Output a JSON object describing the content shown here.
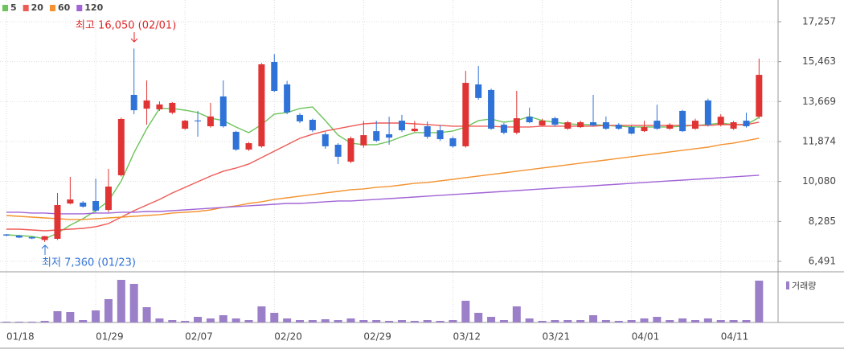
{
  "chart_data": {
    "type": "candlestick",
    "categories": [
      "01/18",
      null,
      null,
      null,
      null,
      null,
      null,
      "01/29",
      null,
      null,
      null,
      null,
      null,
      null,
      "02/07",
      null,
      null,
      null,
      null,
      null,
      null,
      "02/20",
      null,
      null,
      null,
      null,
      null,
      null,
      "02/29",
      null,
      null,
      null,
      null,
      null,
      null,
      "03/12",
      null,
      null,
      null,
      null,
      null,
      null,
      "03/21",
      null,
      null,
      null,
      null,
      null,
      null,
      "04/01",
      null,
      null,
      null,
      null,
      null,
      null,
      "04/11",
      null,
      null,
      null
    ],
    "open": [
      7700,
      7650,
      7580,
      7450,
      7503,
      9090,
      9130,
      9200,
      8800,
      10357,
      13970,
      13350,
      13320,
      13170,
      12450,
      12820,
      12560,
      13900,
      12310,
      11513,
      11657,
      15450,
      14440,
      13070,
      12850,
      12200,
      11730,
      10970,
      11700,
      12340,
      12200,
      12810,
      12340,
      12560,
      12380,
      12020,
      11660,
      14440,
      14190,
      12630,
      12270,
      12990,
      12600,
      12920,
      12450,
      12520,
      12740,
      12740,
      12630,
      12520,
      12340,
      12810,
      12450,
      13250,
      12450,
      13720,
      12630,
      12450,
      12810,
      12990
    ],
    "high": [
      7720,
      7680,
      7600,
      7640,
      9562,
      10285,
      9200,
      10212,
      10646,
      12950,
      16050,
      14620,
      13680,
      13650,
      12850,
      13250,
      13610,
      14620,
      12350,
      11850,
      15400,
      15800,
      14600,
      13150,
      12900,
      12300,
      11800,
      12100,
      12800,
      12810,
      12990,
      13070,
      12800,
      12780,
      12600,
      12100,
      15050,
      15270,
      14250,
      12700,
      14150,
      13400,
      12900,
      12990,
      12800,
      12810,
      13970,
      13000,
      12700,
      12600,
      12810,
      13530,
      12700,
      13300,
      12900,
      13800,
      13100,
      12800,
      13170,
      15600
    ],
    "low": [
      7620,
      7530,
      7490,
      7360,
      7450,
      9050,
      8900,
      8700,
      8700,
      10300,
      13100,
      12630,
      13250,
      13100,
      12400,
      12090,
      12500,
      12500,
      11450,
      11450,
      11600,
      14100,
      13100,
      12700,
      12300,
      11550,
      10860,
      10900,
      11600,
      11850,
      11730,
      12300,
      12300,
      12000,
      11900,
      11600,
      11600,
      13750,
      12400,
      12200,
      12200,
      12700,
      12550,
      12550,
      12400,
      12480,
      12550,
      12400,
      12400,
      12200,
      12300,
      12400,
      12400,
      12300,
      12400,
      12550,
      12550,
      12400,
      12500,
      12900
    ],
    "close": [
      7650,
      7560,
      7520,
      7620,
      9020,
      9270,
      8950,
      8770,
      9851,
      12886,
      13280,
      13720,
      13540,
      13610,
      12810,
      12780,
      13000,
      12560,
      11513,
      11800,
      15343,
      14150,
      13180,
      12780,
      12380,
      11660,
      11190,
      12020,
      12160,
      11910,
      12050,
      12380,
      12450,
      12090,
      11980,
      11660,
      14510,
      13830,
      12450,
      12270,
      12920,
      12740,
      12810,
      12630,
      12740,
      12740,
      12600,
      12450,
      12450,
      12230,
      12520,
      12450,
      12630,
      12340,
      12810,
      12630,
      12990,
      12740,
      12560,
      14870
    ],
    "up_color": "#e03434",
    "down_color": "#2f72d8",
    "series": [
      {
        "name": "5",
        "color": "#6cc45a",
        "values": [
          7683,
          7647,
          7611,
          7503,
          7756,
          8117,
          8406,
          8767,
          9201,
          10104,
          11369,
          12452,
          13356,
          13356,
          13283,
          13175,
          12922,
          12814,
          12525,
          12272,
          12633,
          13103,
          13175,
          13356,
          13428,
          12814,
          12163,
          11802,
          11730,
          11730,
          11874,
          12091,
          12272,
          12272,
          12272,
          12344,
          12525,
          12814,
          12886,
          12741,
          12814,
          12994,
          12814,
          12741,
          12669,
          12633,
          12633,
          12597,
          12561,
          12525,
          12525,
          12525,
          12525,
          12561,
          12597,
          12633,
          12705,
          12633,
          12633,
          12958
        ]
      },
      {
        "name": "20",
        "color": "#ee5a55",
        "values": [
          7936,
          7936,
          7900,
          7864,
          7900,
          7936,
          7972,
          8045,
          8189,
          8478,
          8767,
          9020,
          9273,
          9562,
          9815,
          10068,
          10321,
          10538,
          10682,
          10863,
          11152,
          11441,
          11730,
          12019,
          12200,
          12344,
          12452,
          12561,
          12669,
          12705,
          12705,
          12705,
          12669,
          12633,
          12597,
          12561,
          12561,
          12561,
          12561,
          12525,
          12525,
          12525,
          12561,
          12561,
          12561,
          12561,
          12561,
          12597,
          12597,
          12597,
          12597,
          12597,
          12597,
          12597,
          12597,
          12597,
          12633,
          12633,
          12633,
          12741
        ]
      },
      {
        "name": "60",
        "color": "#f39230",
        "values": [
          8550,
          8514,
          8478,
          8442,
          8406,
          8370,
          8370,
          8406,
          8442,
          8478,
          8514,
          8550,
          8587,
          8659,
          8695,
          8731,
          8803,
          8912,
          8984,
          9092,
          9165,
          9273,
          9345,
          9418,
          9490,
          9562,
          9634,
          9707,
          9743,
          9815,
          9851,
          9923,
          9996,
          10032,
          10104,
          10176,
          10249,
          10321,
          10393,
          10465,
          10538,
          10610,
          10682,
          10754,
          10827,
          10899,
          10971,
          11043,
          11116,
          11188,
          11260,
          11332,
          11405,
          11477,
          11549,
          11621,
          11730,
          11802,
          11911,
          12019
        ]
      },
      {
        "name": "120",
        "color": "#a064d6",
        "values": [
          8695,
          8695,
          8659,
          8659,
          8623,
          8623,
          8623,
          8659,
          8659,
          8695,
          8695,
          8731,
          8731,
          8767,
          8803,
          8840,
          8876,
          8912,
          8948,
          8984,
          9020,
          9056,
          9092,
          9092,
          9128,
          9165,
          9201,
          9201,
          9237,
          9273,
          9309,
          9345,
          9381,
          9418,
          9454,
          9490,
          9526,
          9562,
          9598,
          9634,
          9670,
          9707,
          9743,
          9779,
          9815,
          9851,
          9887,
          9923,
          9959,
          9996,
          10032,
          10068,
          10104,
          10140,
          10176,
          10212,
          10249,
          10285,
          10321,
          10357
        ]
      }
    ],
    "ylim": [
      6021,
      18088
    ],
    "yticks": [
      {
        "value": 6491,
        "label": "6,491"
      },
      {
        "value": 8285,
        "label": "8,285"
      },
      {
        "value": 10080,
        "label": "10,080"
      },
      {
        "value": 11874,
        "label": "11,874"
      },
      {
        "value": 13669,
        "label": "13,669"
      },
      {
        "value": 15463,
        "label": "15,463"
      },
      {
        "value": 17257,
        "label": "17,257"
      }
    ],
    "grid": true,
    "high_label": "최고 16,050 (02/01)",
    "low_label": "최저 7,360 (01/23)",
    "volume": {
      "name": "거래량",
      "color": "#9b7fc8",
      "ylim": [
        0,
        58
      ],
      "values": [
        1,
        1,
        1,
        2,
        14,
        13,
        3,
        15,
        29,
        53,
        48,
        19,
        5,
        3,
        2,
        7,
        5,
        9,
        5,
        3,
        20,
        12,
        5,
        3,
        3,
        4,
        3,
        5,
        3,
        3,
        2,
        3,
        2,
        3,
        2,
        3,
        27,
        12,
        7,
        3,
        20,
        5,
        2,
        3,
        3,
        3,
        9,
        3,
        2,
        3,
        5,
        7,
        3,
        5,
        3,
        5,
        3,
        3,
        3,
        52
      ]
    }
  }
}
